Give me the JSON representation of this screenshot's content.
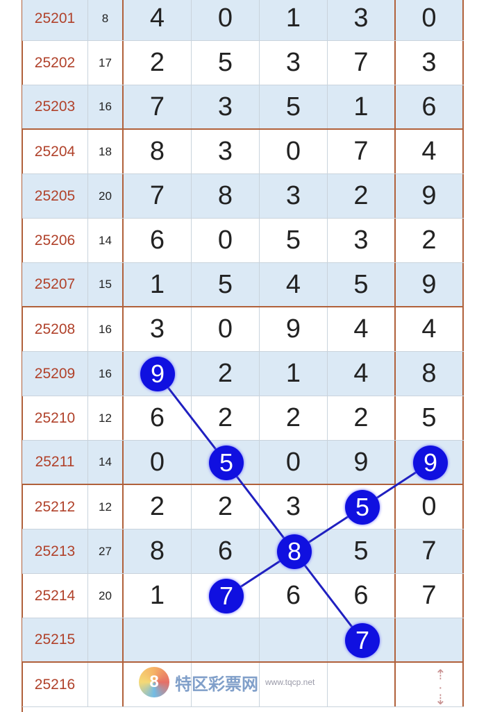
{
  "rows": [
    {
      "issue": "25201",
      "sum": "8",
      "digits": [
        "4",
        "0",
        "1",
        "3",
        "0"
      ]
    },
    {
      "issue": "25202",
      "sum": "17",
      "digits": [
        "2",
        "5",
        "3",
        "7",
        "3"
      ]
    },
    {
      "issue": "25203",
      "sum": "16",
      "digits": [
        "7",
        "3",
        "5",
        "1",
        "6"
      ]
    },
    {
      "issue": "25204",
      "sum": "18",
      "digits": [
        "8",
        "3",
        "0",
        "7",
        "4"
      ]
    },
    {
      "issue": "25205",
      "sum": "20",
      "digits": [
        "7",
        "8",
        "3",
        "2",
        "9"
      ]
    },
    {
      "issue": "25206",
      "sum": "14",
      "digits": [
        "6",
        "0",
        "5",
        "3",
        "2"
      ]
    },
    {
      "issue": "25207",
      "sum": "15",
      "digits": [
        "1",
        "5",
        "4",
        "5",
        "9"
      ]
    },
    {
      "issue": "25208",
      "sum": "16",
      "digits": [
        "3",
        "0",
        "9",
        "4",
        "4"
      ]
    },
    {
      "issue": "25209",
      "sum": "16",
      "digits": [
        "",
        "2",
        "1",
        "4",
        "8"
      ]
    },
    {
      "issue": "25210",
      "sum": "12",
      "digits": [
        "6",
        "2",
        "2",
        "2",
        "5"
      ]
    },
    {
      "issue": "25211",
      "sum": "14",
      "digits": [
        "0",
        "",
        "0",
        "9",
        ""
      ]
    },
    {
      "issue": "25212",
      "sum": "12",
      "digits": [
        "2",
        "2",
        "3",
        "",
        "0"
      ]
    },
    {
      "issue": "25213",
      "sum": "27",
      "digits": [
        "8",
        "6",
        "",
        "5",
        "7"
      ]
    },
    {
      "issue": "25214",
      "sum": "20",
      "digits": [
        "1",
        "",
        "6",
        "6",
        "7"
      ]
    },
    {
      "issue": "25215",
      "sum": "",
      "digits": [
        "",
        "",
        "",
        "",
        ""
      ]
    },
    {
      "issue": "25216",
      "sum": "",
      "digits": [
        "",
        "",
        "",
        "",
        ""
      ]
    }
  ],
  "highlights": [
    {
      "row": 8,
      "col": 0,
      "value": "9"
    },
    {
      "row": 10,
      "col": 1,
      "value": "5"
    },
    {
      "row": 10,
      "col": 4,
      "value": "9"
    },
    {
      "row": 11,
      "col": 3,
      "value": "5"
    },
    {
      "row": 12,
      "col": 2,
      "value": "8"
    },
    {
      "row": 13,
      "col": 1,
      "value": "7"
    },
    {
      "row": 14,
      "col": 3,
      "value": "7"
    }
  ],
  "lines": [
    [
      0,
      1,
      4,
      6
    ],
    [
      5,
      4,
      3,
      2
    ]
  ],
  "colors": {
    "ball": "#1010e0",
    "line": "#2020c0",
    "border": "#b0603a",
    "issue_text": "#b0412a",
    "row_blue": "#dbe9f5"
  },
  "watermark": {
    "logo": "8",
    "text": "特区彩票网",
    "url": "www.tqcp.net"
  },
  "scroll_icon": "up-down-arrows-icon"
}
